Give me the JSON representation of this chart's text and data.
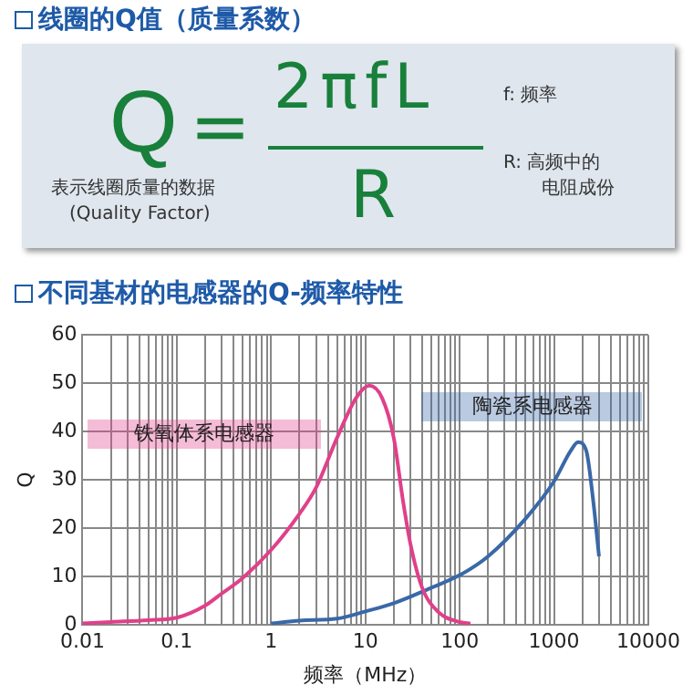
{
  "chart_data": [
    {
      "type": "other",
      "title": "线圈的Q值（质量系数）",
      "annotations": [
        "Q",
        "=",
        "2πfL",
        "R",
        "表示线圈质量的数据",
        "(Quality Factor)",
        "f:  频率",
        "R:  高频中的",
        "电阻成份"
      ]
    },
    {
      "type": "line",
      "title": "不同基材的电感器的Q-频率特性",
      "xlabel": "频率（MHz）",
      "ylabel": "Q",
      "log": "x",
      "grid": true,
      "legend": false,
      "marker": "none",
      "line_style": "solid",
      "xlim": [
        0.01,
        10000
      ],
      "ylim": [
        0,
        60
      ],
      "yticks": [
        0,
        10,
        20,
        30,
        40,
        50,
        60
      ],
      "xticks": [
        0.01,
        {
          "value": 0.02,
          "label": null
        },
        {
          "value": 0.03,
          "label": null
        },
        {
          "value": 0.04,
          "label": null
        },
        {
          "value": 0.05,
          "label": null
        },
        {
          "value": 0.06,
          "label": null
        },
        {
          "value": 0.07,
          "label": null
        },
        {
          "value": 0.08,
          "label": null
        },
        {
          "value": 0.09,
          "label": null
        },
        0.1,
        {
          "value": 0.2,
          "label": null
        },
        {
          "value": 0.3,
          "label": null
        },
        {
          "value": 0.4,
          "label": null
        },
        {
          "value": 0.5,
          "label": null
        },
        {
          "value": 0.6,
          "label": null
        },
        {
          "value": 0.7,
          "label": null
        },
        {
          "value": 0.8,
          "label": null
        },
        {
          "value": 0.9,
          "label": null
        },
        1,
        {
          "value": 2,
          "label": null
        },
        {
          "value": 3,
          "label": null
        },
        {
          "value": 4,
          "label": null
        },
        {
          "value": 5,
          "label": null
        },
        {
          "value": 6,
          "label": null
        },
        {
          "value": 7,
          "label": null
        },
        {
          "value": 8,
          "label": null
        },
        {
          "value": 9,
          "label": null
        },
        10,
        {
          "value": 20,
          "label": null
        },
        {
          "value": 30,
          "label": null
        },
        {
          "value": 40,
          "label": null
        },
        {
          "value": 50,
          "label": null
        },
        {
          "value": 60,
          "label": null
        },
        {
          "value": 70,
          "label": null
        },
        {
          "value": 80,
          "label": null
        },
        {
          "value": 90,
          "label": null
        },
        100,
        {
          "value": 200,
          "label": null
        },
        {
          "value": 300,
          "label": null
        },
        {
          "value": 400,
          "label": null
        },
        {
          "value": 500,
          "label": null
        },
        {
          "value": 600,
          "label": null
        },
        {
          "value": 700,
          "label": null
        },
        {
          "value": 800,
          "label": null
        },
        {
          "value": 900,
          "label": null
        },
        1000,
        {
          "value": 2000,
          "label": null
        },
        {
          "value": 3000,
          "label": null
        },
        {
          "value": 4000,
          "label": null
        },
        {
          "value": 5000,
          "label": null
        },
        {
          "value": 6000,
          "label": null
        },
        {
          "value": 7000,
          "label": null
        },
        {
          "value": 8000,
          "label": null
        },
        {
          "value": 9000,
          "label": null
        },
        10000
      ],
      "series": [
        {
          "name": "铁氧体系电感器",
          "color": "#e0408a",
          "x": [
            0.01,
            0.02,
            0.05,
            0.1,
            0.2,
            0.3,
            0.5,
            1,
            2,
            3,
            5,
            8,
            11,
            15,
            20,
            25,
            30,
            40,
            60,
            100,
            130
          ],
          "values": [
            0.3,
            0.6,
            1,
            1.5,
            4,
            6.5,
            9.7,
            15.5,
            23,
            28.4,
            38.7,
            47,
            49.5,
            47,
            38.7,
            25.8,
            16.8,
            7.7,
            2.6,
            0.6,
            0.3
          ]
        },
        {
          "name": "陶瓷系电感器",
          "color": "#3a68a8",
          "x": [
            1,
            2,
            5,
            10,
            20,
            50,
            100,
            200,
            500,
            1000,
            1500,
            1800,
            2200,
            2600,
            3000
          ],
          "values": [
            0.3,
            0.9,
            1.3,
            2.8,
            4.5,
            7.7,
            10.3,
            14.2,
            22,
            29.7,
            36,
            37.8,
            36,
            25.8,
            14.2
          ]
        }
      ]
    }
  ]
}
